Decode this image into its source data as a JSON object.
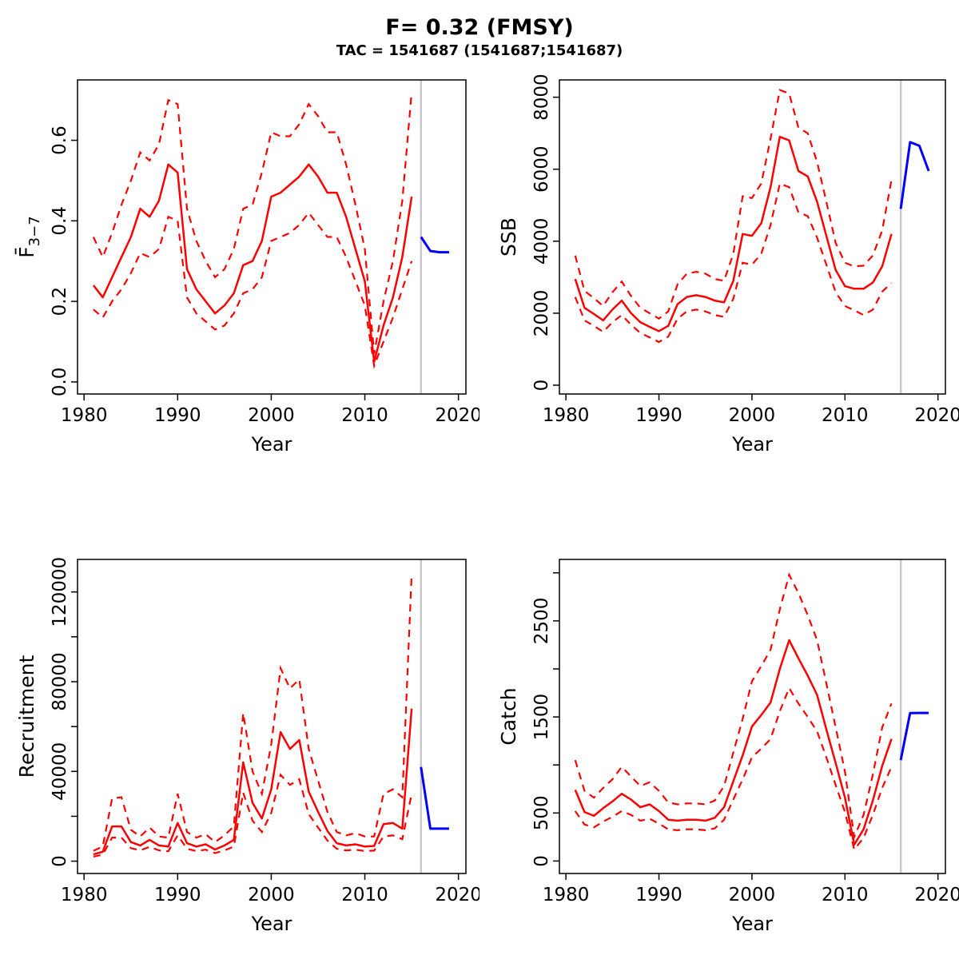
{
  "header": {
    "title": "F= 0.32 (FMSY)",
    "subtitle": "TAC = 1541687 (1541687;1541687)"
  },
  "colors": {
    "historical_line": "#ff0000",
    "forecast_line": "#0000ff",
    "divider_line": "#c8c8c8",
    "axis": "#000000",
    "background": "#ffffff"
  },
  "chart_data": [
    {
      "id": "fbar",
      "type": "line",
      "ylabel": "F̄",
      "ylabel_sub": "3−7",
      "xlabel": "Year",
      "xlim": [
        1979.3,
        2020.8
      ],
      "ylim": [
        -0.03,
        0.75
      ],
      "xticks": [
        1980,
        1990,
        2000,
        2010,
        2020
      ],
      "yticks": [
        0,
        0.2,
        0.4,
        0.6
      ],
      "ytick_labels": [
        "0.0",
        "0.2",
        "0.4",
        "0.6"
      ],
      "yticks_minor": [],
      "vline_year": 2016,
      "years": [
        1981,
        1982,
        1983,
        1984,
        1985,
        1986,
        1987,
        1988,
        1989,
        1990,
        1991,
        1992,
        1993,
        1994,
        1995,
        1996,
        1997,
        1998,
        1999,
        2000,
        2001,
        2002,
        2003,
        2004,
        2005,
        2006,
        2007,
        2008,
        2009,
        2010,
        2011,
        2012,
        2013,
        2014,
        2015
      ],
      "median": [
        0.24,
        0.21,
        0.26,
        0.31,
        0.36,
        0.43,
        0.41,
        0.45,
        0.54,
        0.52,
        0.28,
        0.23,
        0.2,
        0.17,
        0.19,
        0.22,
        0.29,
        0.3,
        0.35,
        0.46,
        0.47,
        0.49,
        0.51,
        0.54,
        0.51,
        0.47,
        0.47,
        0.41,
        0.33,
        0.25,
        0.05,
        0.14,
        0.21,
        0.31,
        0.46
      ],
      "upper": [
        0.36,
        0.31,
        0.37,
        0.44,
        0.5,
        0.57,
        0.55,
        0.59,
        0.7,
        0.69,
        0.43,
        0.35,
        0.3,
        0.26,
        0.28,
        0.33,
        0.43,
        0.44,
        0.52,
        0.62,
        0.61,
        0.61,
        0.64,
        0.69,
        0.66,
        0.62,
        0.62,
        0.54,
        0.44,
        0.33,
        0.07,
        0.2,
        0.3,
        0.45,
        0.72
      ],
      "lower": [
        0.18,
        0.16,
        0.2,
        0.23,
        0.27,
        0.32,
        0.31,
        0.33,
        0.41,
        0.4,
        0.21,
        0.17,
        0.15,
        0.13,
        0.14,
        0.17,
        0.22,
        0.23,
        0.26,
        0.35,
        0.36,
        0.37,
        0.39,
        0.42,
        0.39,
        0.36,
        0.36,
        0.31,
        0.25,
        0.19,
        0.04,
        0.1,
        0.16,
        0.23,
        0.3
      ],
      "forecast_years": [
        2016,
        2017,
        2018,
        2019
      ],
      "forecast": [
        0.36,
        0.325,
        0.322,
        0.322
      ]
    },
    {
      "id": "ssb",
      "type": "line",
      "ylabel": "SSB",
      "ylabel_sub": "",
      "xlabel": "Year",
      "xlim": [
        1979.3,
        2020.8
      ],
      "ylim": [
        -244,
        8480
      ],
      "xticks": [
        1980,
        1990,
        2000,
        2010,
        2020
      ],
      "yticks": [
        0,
        2000,
        4000,
        6000,
        8000
      ],
      "ytick_labels": [
        "0",
        "2000",
        "4000",
        "6000",
        "8000"
      ],
      "yticks_minor": [],
      "vline_year": 2016,
      "years": [
        1981,
        1982,
        1983,
        1984,
        1985,
        1986,
        1987,
        1988,
        1989,
        1990,
        1991,
        1992,
        1993,
        1994,
        1995,
        1996,
        1997,
        1998,
        1999,
        2000,
        2001,
        2002,
        2003,
        2004,
        2005,
        2006,
        2007,
        2008,
        2009,
        2010,
        2011,
        2012,
        2013,
        2014,
        2015
      ],
      "median": [
        2950,
        2150,
        1980,
        1800,
        2100,
        2350,
        2000,
        1750,
        1620,
        1500,
        1650,
        2250,
        2450,
        2500,
        2450,
        2350,
        2300,
        2900,
        4200,
        4150,
        4500,
        5500,
        6900,
        6800,
        5950,
        5800,
        5100,
        4150,
        3200,
        2750,
        2680,
        2680,
        2850,
        3300,
        4200
      ],
      "upper": [
        3600,
        2620,
        2420,
        2200,
        2580,
        2880,
        2480,
        2150,
        2000,
        1850,
        2050,
        2800,
        3100,
        3150,
        3100,
        2950,
        2900,
        3650,
        5250,
        5200,
        5600,
        6850,
        8200,
        8100,
        7150,
        7000,
        6200,
        5100,
        3950,
        3400,
        3300,
        3320,
        3600,
        4300,
        5700
      ],
      "lower": [
        2450,
        1800,
        1650,
        1480,
        1750,
        1950,
        1680,
        1450,
        1330,
        1200,
        1350,
        1850,
        2050,
        2100,
        2050,
        1950,
        1900,
        2400,
        3400,
        3350,
        3650,
        4450,
        5600,
        5500,
        4800,
        4700,
        4100,
        3350,
        2580,
        2200,
        2080,
        1950,
        2100,
        2600,
        2840
      ],
      "forecast_years": [
        2016,
        2017,
        2018,
        2019
      ],
      "forecast": [
        4900,
        6750,
        6650,
        5950
      ]
    },
    {
      "id": "recruitment",
      "type": "line",
      "ylabel": "Recruitment",
      "ylabel_sub": "",
      "xlabel": "Year",
      "xlim": [
        1979.3,
        2020.8
      ],
      "ylim": [
        -5500,
        134500
      ],
      "xticks": [
        1980,
        1990,
        2000,
        2010,
        2020
      ],
      "yticks": [
        0,
        40000,
        80000,
        120000
      ],
      "ytick_labels": [
        "0",
        "40000",
        "80000",
        "120000"
      ],
      "yticks_minor": [
        20000,
        60000,
        100000
      ],
      "vline_year": 2016,
      "years": [
        1981,
        1982,
        1983,
        1984,
        1985,
        1986,
        1987,
        1988,
        1989,
        1990,
        1991,
        1992,
        1993,
        1994,
        1995,
        1996,
        1997,
        1998,
        1999,
        2000,
        2001,
        2002,
        2003,
        2004,
        2005,
        2006,
        2007,
        2008,
        2009,
        2010,
        2011,
        2012,
        2013,
        2014,
        2015
      ],
      "median": [
        3000,
        4200,
        15500,
        15500,
        8500,
        7000,
        9500,
        7000,
        6500,
        17000,
        8000,
        6500,
        7500,
        5200,
        7000,
        9500,
        44000,
        26000,
        19000,
        32000,
        57500,
        50000,
        54000,
        31000,
        22000,
        13500,
        8000,
        7000,
        7500,
        6500,
        6800,
        16500,
        17000,
        14500,
        68000
      ],
      "upper": [
        4600,
        6500,
        28000,
        28500,
        14000,
        11000,
        15000,
        11000,
        10500,
        30000,
        13000,
        10500,
        12000,
        8500,
        11500,
        15500,
        66000,
        40000,
        30000,
        52000,
        86000,
        77000,
        81000,
        50000,
        36000,
        22000,
        13000,
        11500,
        12500,
        11000,
        11000,
        30000,
        32000,
        28500,
        128000
      ],
      "lower": [
        2000,
        2900,
        10500,
        10500,
        5800,
        4800,
        6400,
        4800,
        4400,
        11500,
        5500,
        4500,
        5100,
        3600,
        4800,
        6500,
        30500,
        18000,
        13000,
        21500,
        38500,
        34000,
        36500,
        21000,
        15000,
        9200,
        5500,
        4800,
        5100,
        4500,
        4700,
        11000,
        11500,
        9800,
        30000
      ],
      "forecast_years": [
        2016,
        2017,
        2018,
        2019
      ],
      "forecast": [
        42000,
        14500,
        14500,
        14500
      ]
    },
    {
      "id": "catch",
      "type": "line",
      "ylabel": "Catch",
      "ylabel_sub": "",
      "xlabel": "Year",
      "xlim": [
        1979.3,
        2020.8
      ],
      "ylim": [
        -130,
        3140
      ],
      "xticks": [
        1980,
        1990,
        2000,
        2010,
        2020
      ],
      "yticks": [
        0,
        500,
        1500,
        2500
      ],
      "ytick_labels": [
        "0",
        "500",
        "1500",
        "2500"
      ],
      "yticks_minor": [
        1000,
        2000,
        3000
      ],
      "vline_year": 2016,
      "years": [
        1981,
        1982,
        1983,
        1984,
        1985,
        1986,
        1987,
        1988,
        1989,
        1990,
        1991,
        1992,
        1993,
        1994,
        1995,
        1996,
        1997,
        1998,
        1999,
        2000,
        2001,
        2002,
        2003,
        2004,
        2005,
        2006,
        2007,
        2008,
        2009,
        2010,
        2011,
        2012,
        2013,
        2014,
        2015
      ],
      "median": [
        740,
        510,
        470,
        550,
        620,
        700,
        640,
        560,
        590,
        520,
        430,
        420,
        430,
        430,
        420,
        450,
        560,
        830,
        1100,
        1400,
        1520,
        1650,
        2000,
        2300,
        2110,
        1930,
        1730,
        1370,
        1020,
        660,
        170,
        330,
        630,
        990,
        1270
      ],
      "upper": [
        1050,
        730,
        660,
        760,
        850,
        980,
        880,
        780,
        820,
        730,
        610,
        590,
        600,
        600,
        590,
        630,
        780,
        1130,
        1480,
        1870,
        2030,
        2200,
        2620,
        2980,
        2790,
        2560,
        2300,
        1850,
        1390,
        930,
        250,
        480,
        900,
        1390,
        1640
      ],
      "lower": [
        520,
        380,
        350,
        410,
        460,
        520,
        480,
        420,
        440,
        390,
        330,
        320,
        330,
        330,
        320,
        340,
        430,
        640,
        850,
        1080,
        1170,
        1270,
        1560,
        1800,
        1640,
        1500,
        1350,
        1080,
        790,
        510,
        120,
        240,
        480,
        760,
        980
      ],
      "forecast_years": [
        2016,
        2017,
        2018,
        2019
      ],
      "forecast": [
        1050,
        1540,
        1542,
        1542
      ]
    }
  ]
}
